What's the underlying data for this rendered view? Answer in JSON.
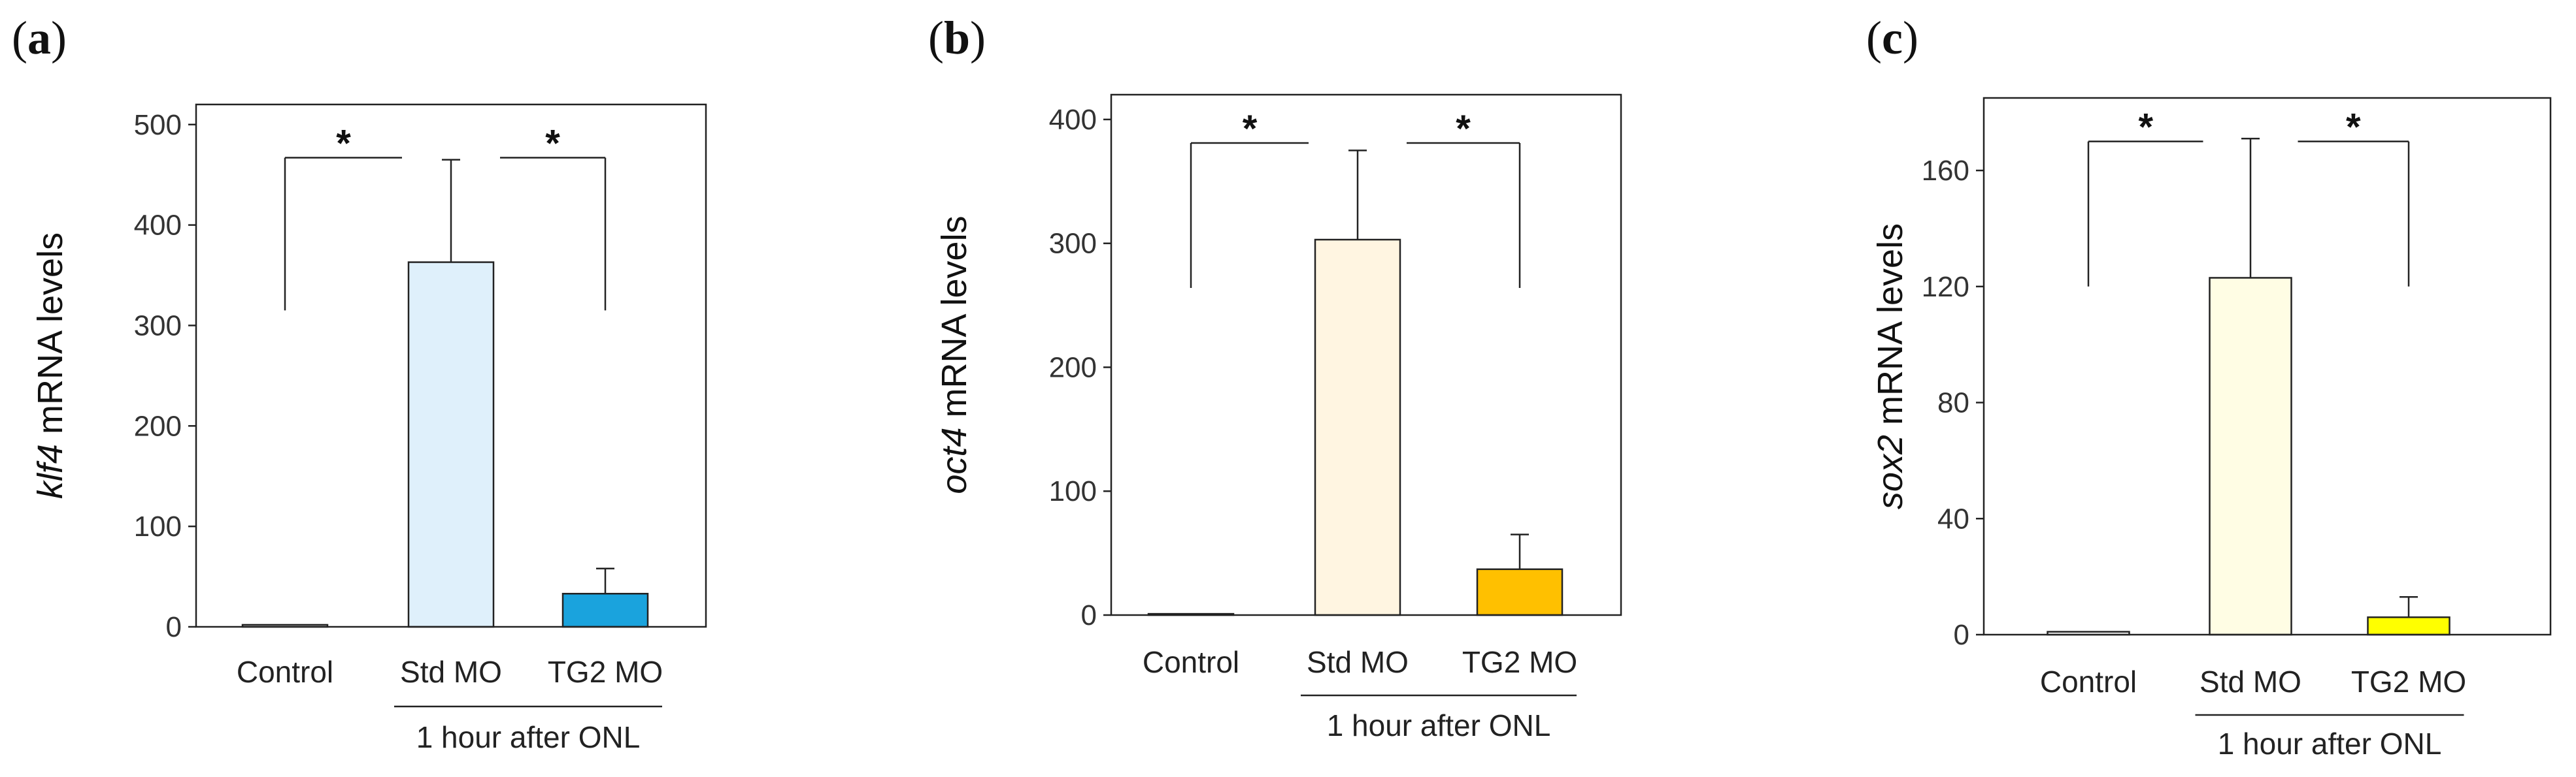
{
  "chart_data": [
    {
      "type": "bar",
      "panel": {
        "open": "(",
        "letter": "a",
        "close": ")"
      },
      "gene": "klf4",
      "ylabel_suffix": " mRNA levels",
      "categories": [
        "Control",
        "Std MO",
        "TG2 MO"
      ],
      "values": [
        2,
        363,
        33
      ],
      "errors": [
        0,
        102,
        25
      ],
      "colors": [
        "#ffffff",
        "#dff0fb",
        "#1aa3dd"
      ],
      "ylim": [
        0,
        520
      ],
      "yticks": [
        0,
        100,
        200,
        300,
        400,
        500
      ],
      "group_label": "1 hour after ONL",
      "significance": [
        {
          "pair": [
            "Control",
            "Std MO"
          ],
          "label": "*",
          "left_drop": 315,
          "right_drop": 0
        },
        {
          "pair": [
            "Std MO",
            "TG2 MO"
          ],
          "label": "*",
          "left_drop": 0,
          "right_drop": 315
        }
      ],
      "sig_level": 467
    },
    {
      "type": "bar",
      "panel": {
        "open": "(",
        "letter": "b",
        "close": ")"
      },
      "gene": "oct4",
      "ylabel_suffix": " mRNA levels",
      "categories": [
        "Control",
        "Std MO",
        "TG2 MO"
      ],
      "values": [
        1,
        303,
        37
      ],
      "errors": [
        0,
        72,
        28
      ],
      "colors": [
        "#ffffff",
        "#fff5e1",
        "#ffc000"
      ],
      "ylim": [
        0,
        420
      ],
      "yticks": [
        0,
        100,
        200,
        300,
        400
      ],
      "group_label": "1 hour after ONL",
      "significance": [
        {
          "pair": [
            "Control",
            "Std MO"
          ],
          "label": "*",
          "left_drop": 264,
          "right_drop": 0
        },
        {
          "pair": [
            "Std MO",
            "TG2 MO"
          ],
          "label": "*",
          "left_drop": 0,
          "right_drop": 264
        }
      ],
      "sig_level": 381
    },
    {
      "type": "bar",
      "panel": {
        "open": "(",
        "letter": "c",
        "close": ")"
      },
      "gene": "sox2",
      "ylabel_suffix": " mRNA levels",
      "categories": [
        "Control",
        "Std MO",
        "TG2 MO"
      ],
      "values": [
        1,
        123,
        6
      ],
      "errors": [
        0,
        48,
        7
      ],
      "colors": [
        "#ffffff",
        "#fffde4",
        "#ffff00"
      ],
      "ylim": [
        0,
        185
      ],
      "yticks": [
        0,
        40,
        80,
        120,
        160
      ],
      "group_label": "1 hour after ONL",
      "significance": [
        {
          "pair": [
            "Control",
            "Std MO"
          ],
          "label": "*",
          "left_drop": 120,
          "right_drop": 0
        },
        {
          "pair": [
            "Std MO",
            "TG2 MO"
          ],
          "label": "*",
          "left_drop": 0,
          "right_drop": 120
        }
      ],
      "sig_level": 170
    }
  ]
}
